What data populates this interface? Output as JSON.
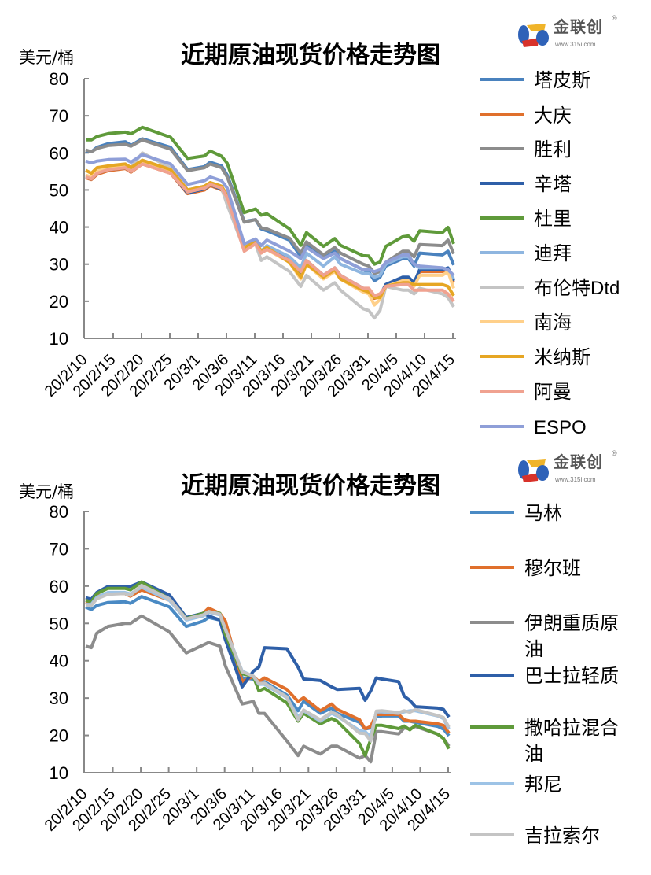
{
  "logo": {
    "text": "金联创",
    "url": "www.315i.com",
    "reg": "®"
  },
  "chart_data": [
    {
      "type": "line",
      "title": "近期原油现货价格走势图",
      "ylabel": "美元/桶",
      "xlabel": "",
      "ylim": [
        10,
        80
      ],
      "yticks": [
        10,
        20,
        30,
        40,
        50,
        60,
        70,
        80
      ],
      "xtick_labels": [
        "20/2/10",
        "20/2/15",
        "20/2/20",
        "20/2/25",
        "20/3/1",
        "20/3/6",
        "20/3/11",
        "20/3/16",
        "20/3/21",
        "20/3/26",
        "20/3/31",
        "20/4/5",
        "20/4/10",
        "20/4/15"
      ],
      "x_days_from_2020_02_10": [
        0,
        1,
        2,
        4,
        7,
        8,
        10,
        15,
        18,
        21,
        22,
        24,
        25,
        28,
        30,
        31,
        32,
        36,
        38,
        39,
        42,
        44,
        45,
        49,
        50,
        51,
        52,
        53,
        56,
        57,
        58,
        59,
        63,
        64,
        65
      ],
      "legend": "right",
      "grid": false,
      "series": [
        {
          "name": "塔皮斯",
          "color": "#4a82be",
          "values": [
            60.5,
            60.3,
            61.5,
            62.5,
            63.0,
            62.0,
            63.8,
            61.5,
            55.5,
            56.3,
            57.5,
            56.5,
            54.0,
            41.5,
            42.0,
            39.5,
            39.0,
            36.5,
            32.0,
            35.5,
            31.5,
            33.5,
            31.5,
            28.5,
            28.0,
            25.5,
            26.5,
            29.5,
            31.5,
            31.5,
            29.5,
            33.0,
            32.5,
            33.5,
            29.8
          ]
        },
        {
          "name": "大庆",
          "color": "#e0702c",
          "values": [
            53.3,
            52.8,
            54.2,
            55.2,
            55.8,
            54.8,
            57.0,
            54.5,
            49.0,
            50.0,
            51.2,
            50.0,
            47.8,
            34.2,
            35.8,
            33.2,
            34.2,
            30.8,
            27.2,
            30.8,
            26.8,
            28.8,
            26.8,
            23.2,
            22.8,
            20.8,
            21.2,
            24.2,
            26.2,
            26.2,
            24.8,
            28.0,
            28.0,
            28.5,
            25.0
          ]
        },
        {
          "name": "胜利",
          "color": "#8c8c8c",
          "values": [
            60.8,
            60.3,
            61.2,
            62.0,
            62.3,
            61.8,
            63.5,
            61.0,
            55.2,
            56.0,
            57.0,
            56.0,
            53.5,
            41.3,
            42.0,
            39.8,
            39.5,
            37.0,
            33.0,
            36.0,
            32.5,
            34.5,
            33.0,
            30.0,
            29.5,
            27.5,
            28.0,
            30.5,
            33.5,
            33.5,
            32.0,
            35.3,
            35.0,
            36.5,
            32.8
          ]
        },
        {
          "name": "辛塔",
          "color": "#2e5fa8",
          "values": [
            53.5,
            53.0,
            54.5,
            55.5,
            56.0,
            55.0,
            57.2,
            54.7,
            49.2,
            50.3,
            51.5,
            50.2,
            48.0,
            34.5,
            36.0,
            33.5,
            34.5,
            31.0,
            27.5,
            31.0,
            27.0,
            29.0,
            27.0,
            23.5,
            23.0,
            21.0,
            21.5,
            24.5,
            26.5,
            26.5,
            25.0,
            28.5,
            28.5,
            29.0,
            25.5
          ]
        },
        {
          "name": "杜里",
          "color": "#5f9a3a",
          "values": [
            63.5,
            63.5,
            64.4,
            65.2,
            65.6,
            65.1,
            66.9,
            64.2,
            58.5,
            59.2,
            60.5,
            59.1,
            57.2,
            43.9,
            44.9,
            43.2,
            43.6,
            39.5,
            35.1,
            38.5,
            34.8,
            36.9,
            35.1,
            32.3,
            32.2,
            30.0,
            30.6,
            34.8,
            37.4,
            37.6,
            36.2,
            39.0,
            38.5,
            39.9,
            35.5
          ]
        },
        {
          "name": "迪拜",
          "color": "#8fb6e0",
          "values": [
            53.8,
            53.5,
            55,
            56,
            56.5,
            55.5,
            58,
            55.5,
            50,
            51,
            52,
            51,
            48.5,
            34,
            36,
            33.5,
            35,
            32,
            29,
            33,
            29.5,
            32,
            30,
            27.5,
            27.5,
            26.5,
            27,
            30,
            32,
            32,
            30,
            29,
            29,
            28.5,
            26
          ]
        },
        {
          "name": "布伦特Dtd",
          "color": "#c4c4c4",
          "values": [
            54,
            53.5,
            55,
            56.5,
            57,
            56,
            60,
            56,
            50,
            51,
            52,
            50.5,
            46,
            34,
            35.5,
            31,
            32,
            28,
            24,
            27,
            23,
            25,
            23,
            18,
            17.5,
            15.5,
            17.5,
            24,
            23,
            23,
            22,
            23.5,
            22,
            21,
            18.5
          ]
        },
        {
          "name": "南海",
          "color": "#ffd08a",
          "values": [
            54,
            53.5,
            55,
            56,
            56.5,
            55.5,
            57.5,
            55,
            49.5,
            50.5,
            51.5,
            50.5,
            48,
            34,
            35.5,
            33,
            34,
            30.5,
            26,
            30,
            26,
            28,
            26,
            22.5,
            22,
            19,
            20.5,
            24,
            25.5,
            25.5,
            24,
            27,
            27,
            28,
            23.5
          ]
        },
        {
          "name": "米纳斯",
          "color": "#e6a623",
          "values": [
            55.3,
            54.5,
            56,
            56.5,
            57,
            56,
            58,
            55.5,
            50,
            51,
            52,
            51,
            48.5,
            34.5,
            36,
            33.5,
            34.5,
            30.5,
            26.5,
            30,
            26.5,
            28.5,
            26,
            23,
            22.5,
            21,
            21,
            24,
            25,
            25,
            24.5,
            24.5,
            24.5,
            24,
            21.5
          ]
        },
        {
          "name": "阿曼",
          "color": "#f0a290",
          "values": [
            53.5,
            53,
            54.5,
            55.5,
            56,
            55,
            57,
            54.5,
            49.5,
            50.5,
            51.5,
            50.5,
            48,
            33.5,
            35.5,
            33,
            34,
            31,
            28,
            31,
            27,
            29,
            27,
            23.5,
            23.5,
            21.5,
            22,
            24,
            24.5,
            24.5,
            23,
            23,
            23,
            22,
            20
          ]
        },
        {
          "name": "ESPO",
          "color": "#8f9fd8",
          "values": [
            57.8,
            57.3,
            57.8,
            58.2,
            58.3,
            57.5,
            59.5,
            57.0,
            51.5,
            52.5,
            53.5,
            52.5,
            50.5,
            35.5,
            36.8,
            35.0,
            36.5,
            33.5,
            31.5,
            34.5,
            31.5,
            33.0,
            31.5,
            28.5,
            28.5,
            28.0,
            28.5,
            30.5,
            32.5,
            32.5,
            30.0,
            29.5,
            29.0,
            28.5,
            27.0
          ]
        }
      ]
    },
    {
      "type": "line",
      "title": "近期原油现货价格走势图",
      "ylabel": "美元/桶",
      "xlabel": "",
      "ylim": [
        10,
        80
      ],
      "yticks": [
        10,
        20,
        30,
        40,
        50,
        60,
        70,
        80
      ],
      "xtick_labels": [
        "20/2/10",
        "20/2/15",
        "20/2/20",
        "20/2/25",
        "20/3/1",
        "20/3/6",
        "20/3/11",
        "20/3/16",
        "20/3/21",
        "20/3/26",
        "20/3/31",
        "20/4/5",
        "20/4/10",
        "20/4/15"
      ],
      "x_days_from_2020_02_10": [
        0,
        1,
        2,
        4,
        7,
        8,
        10,
        15,
        18,
        21,
        22,
        24,
        25,
        28,
        30,
        31,
        32,
        36,
        38,
        39,
        42,
        44,
        45,
        49,
        50,
        51,
        52,
        53,
        56,
        57,
        58,
        59,
        63,
        64,
        65
      ],
      "legend": "right",
      "grid": false,
      "series": [
        {
          "name": "马林",
          "color": "#4a8ac4",
          "values": [
            54.4,
            53.7,
            54.8,
            55.6,
            55.8,
            55.4,
            57.2,
            54.4,
            49.2,
            50.6,
            51.6,
            50.9,
            47.0,
            35.4,
            35.1,
            33.7,
            34.4,
            30.8,
            26.6,
            29.1,
            25.9,
            27.3,
            25.9,
            23.5,
            21.7,
            22.0,
            24.9,
            25.2,
            25.2,
            23.8,
            23.8,
            23.5,
            22.4,
            21.7,
            19.9
          ]
        },
        {
          "name": "穆尔班",
          "color": "#e0702c",
          "values": [
            55.8,
            55.4,
            57.2,
            58.0,
            58.0,
            57.3,
            59.0,
            56.2,
            51.3,
            52.7,
            54.1,
            52.7,
            50.6,
            34.4,
            35.8,
            34.4,
            35.4,
            32.3,
            29.1,
            30.1,
            26.6,
            28.4,
            27.0,
            24.2,
            21.7,
            22.4,
            25.6,
            25.6,
            25.6,
            24.2,
            23.8,
            23.8,
            23.1,
            22.7,
            20.6
          ]
        },
        {
          "name": "伊朗重质原油",
          "color": "#8c8c8c",
          "values": [
            43.9,
            43.5,
            47.4,
            49.2,
            50.0,
            50.0,
            52.0,
            47.7,
            42.1,
            44.2,
            44.9,
            43.9,
            38.6,
            28.4,
            29.1,
            25.9,
            25.9,
            18.5,
            14.6,
            17.1,
            15.0,
            17.1,
            17.1,
            13.9,
            14.6,
            12.9,
            21.0,
            21.0,
            20.4,
            22.0,
            21.7,
            22.4,
            20.3,
            19.2,
            17.1
          ]
        },
        {
          "name": "巴士拉轻质",
          "color": "#2e5fa8",
          "values": [
            56.9,
            56.5,
            58.3,
            59.9,
            59.9,
            59.9,
            61.1,
            57.6,
            51.6,
            52.7,
            52.0,
            50.9,
            45.6,
            33.0,
            37.2,
            38.3,
            43.5,
            43.2,
            38.3,
            35.1,
            34.7,
            33.0,
            32.3,
            32.6,
            29.4,
            31.9,
            35.4,
            35.1,
            34.4,
            30.5,
            29.4,
            27.7,
            27.3,
            27.0,
            24.9
          ]
        },
        {
          "name": "撒哈拉混合油",
          "color": "#5f9a3a",
          "values": [
            56.2,
            55.8,
            58.0,
            59.4,
            59.4,
            59.0,
            61.1,
            56.5,
            51.3,
            52.7,
            53.0,
            52.7,
            47.0,
            36.5,
            35.8,
            31.9,
            32.6,
            28.7,
            23.8,
            25.9,
            23.1,
            24.5,
            23.8,
            17.8,
            14.6,
            18.9,
            22.7,
            22.7,
            21.8,
            22.5,
            21.5,
            22.7,
            20.3,
            19.2,
            16.4
          ]
        },
        {
          "name": "邦尼",
          "color": "#9dc3e6",
          "values": [
            55.1,
            55.1,
            57.0,
            58.3,
            58.3,
            57.9,
            59.7,
            56.2,
            50.9,
            52.0,
            53.0,
            52.3,
            48.5,
            37.2,
            35.8,
            33.7,
            33.7,
            30.1,
            24.9,
            26.6,
            23.8,
            25.9,
            25.2,
            21.3,
            21.0,
            19.6,
            26.3,
            26.3,
            25.9,
            26.3,
            26.6,
            26.6,
            25.2,
            24.5,
            21.7
          ]
        },
        {
          "name": "吉拉索尔",
          "color": "#c4c4c4",
          "values": [
            54.7,
            54.8,
            56.6,
            57.8,
            58.0,
            57.5,
            60.2,
            56.6,
            51.2,
            52.3,
            53.2,
            52.5,
            48.3,
            37.0,
            35.9,
            33.9,
            34.0,
            30.3,
            24.2,
            26.8,
            24.2,
            26.2,
            25.6,
            20.6,
            20.5,
            18.5,
            26.5,
            26.6,
            26.1,
            26.6,
            26.2,
            26.9,
            25.3,
            24.8,
            22.2
          ]
        }
      ]
    }
  ]
}
